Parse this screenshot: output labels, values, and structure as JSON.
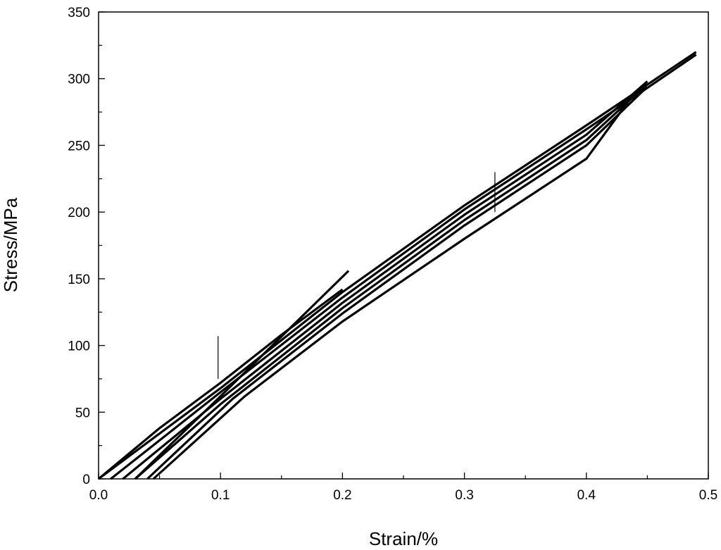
{
  "chart_data": {
    "type": "line",
    "xlabel": "Strain/%",
    "ylabel": "Stress/MPa",
    "xlim": [
      0,
      0.5
    ],
    "ylim": [
      0,
      350
    ],
    "x_ticks": [
      "0.0",
      "0.1",
      "0.2",
      "0.3",
      "0.4",
      "0.5"
    ],
    "y_ticks": [
      "0",
      "50",
      "100",
      "150",
      "200",
      "250",
      "300",
      "350"
    ],
    "grid": false,
    "legend": "none",
    "line_color": "#000000",
    "series": [
      {
        "x": [
          0.0,
          0.1,
          0.2,
          0.3,
          0.4,
          0.49
        ],
        "y": [
          0,
          68,
          140,
          205,
          265,
          320
        ]
      },
      {
        "x": [
          0.01,
          0.1,
          0.2,
          0.3,
          0.4,
          0.49
        ],
        "y": [
          0,
          65,
          136,
          202,
          262,
          318
        ]
      },
      {
        "x": [
          0.02,
          0.1,
          0.2,
          0.3,
          0.4,
          0.45
        ],
        "y": [
          0,
          60,
          132,
          198,
          258,
          298
        ]
      },
      {
        "x": [
          0.03,
          0.1,
          0.2,
          0.3,
          0.4,
          0.45
        ],
        "y": [
          0,
          56,
          128,
          194,
          254,
          296
        ]
      },
      {
        "x": [
          0.04,
          0.11,
          0.2,
          0.3,
          0.4,
          0.45
        ],
        "y": [
          0,
          60,
          124,
          190,
          250,
          294
        ]
      },
      {
        "x": [
          0.045,
          0.12,
          0.2,
          0.3,
          0.4,
          0.44
        ],
        "y": [
          0,
          62,
          118,
          180,
          240,
          290
        ]
      },
      {
        "x": [
          0.03,
          0.1,
          0.205
        ],
        "y": [
          0,
          62,
          156
        ]
      },
      {
        "x": [
          0.0,
          0.05,
          0.1,
          0.15,
          0.2
        ],
        "y": [
          0,
          38,
          72,
          108,
          142
        ]
      }
    ],
    "spikes": [
      {
        "x": 0.098,
        "y0": 75,
        "y1": 107
      },
      {
        "x": 0.325,
        "y0": 200,
        "y1": 230
      }
    ]
  }
}
